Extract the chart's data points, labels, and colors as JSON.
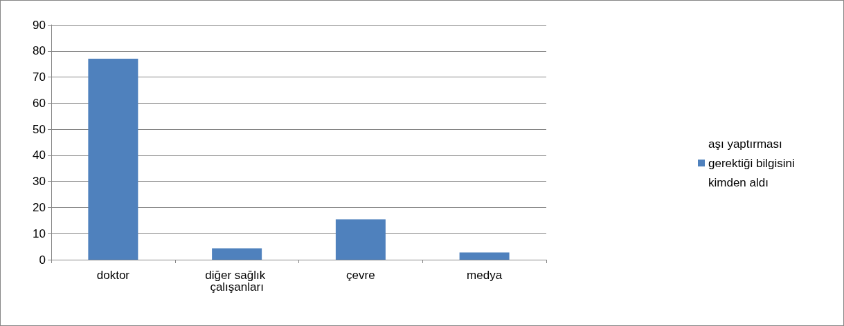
{
  "chart_data": {
    "type": "bar",
    "categories": [
      "doktor",
      "diğer sağlık çalışanları",
      "çevre",
      "medya"
    ],
    "series": [
      {
        "name": "aşı yaptırması gerektiği bilgisini kimden aldı",
        "color": "#4f81bd",
        "values": [
          77,
          4.4,
          15.5,
          2.8
        ]
      }
    ],
    "ylim": [
      0,
      90
    ],
    "yticks": [
      0,
      10,
      20,
      30,
      40,
      50,
      60,
      70,
      80,
      90
    ],
    "grid": "y",
    "legend": "right"
  }
}
